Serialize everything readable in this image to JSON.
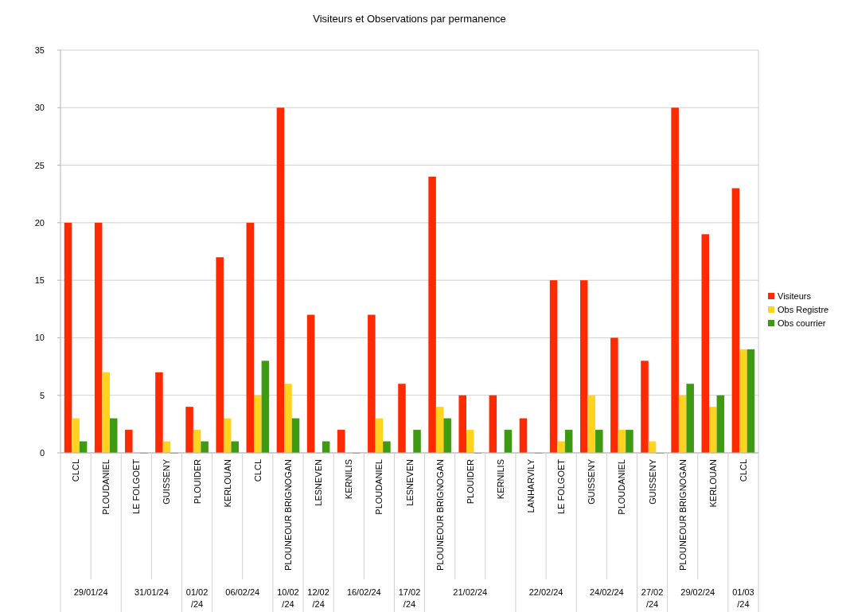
{
  "chart_data": {
    "type": "bar",
    "title": "Visiteurs et Observations par permanence",
    "categories": [
      "CLCL",
      "PLOUDANIEL",
      "LE FOLGOET",
      "GUISSENY",
      "PLOUIDER",
      "KERLOUAN",
      "CLCL",
      "PLOUNEOUR BRIGNOGAN",
      "LESNEVEN",
      "KERNILIS",
      "PLOUDANIEL",
      "LESNEVEN",
      "PLOUNEOUR BRIGNOGAN",
      "PLOUIDER",
      "KERNILIS",
      "LANHARVILY",
      "LE FOLGOET",
      "GUISSENY",
      "PLOUDANIEL",
      "GUISSENY",
      "PLOUNEOUR BRIGNOGAN",
      "KERLOUAN",
      "CLCL"
    ],
    "series": [
      {
        "name": "Visiteurs",
        "color": "#ff2a00",
        "values": [
          20,
          20,
          2,
          7,
          4,
          17,
          20,
          30,
          12,
          2,
          12,
          6,
          24,
          5,
          5,
          3,
          15,
          15,
          10,
          8,
          30,
          19,
          23
        ]
      },
      {
        "name": "Obs Registre",
        "color": "#ffd320",
        "values": [
          3,
          7,
          0,
          1,
          2,
          3,
          5,
          6,
          0,
          0,
          3,
          0,
          4,
          2,
          0,
          0,
          1,
          5,
          2,
          1,
          5,
          4,
          9
        ]
      },
      {
        "name": "Obs courrier",
        "color": "#3d9a13",
        "values": [
          1,
          3,
          0,
          0,
          1,
          1,
          8,
          3,
          1,
          0,
          1,
          2,
          3,
          0,
          2,
          0,
          2,
          2,
          2,
          0,
          6,
          5,
          9
        ]
      }
    ],
    "annotations": [
      "29/01/24",
      "31/01/24",
      "01/02/24",
      "06/02/24",
      "10/02/24",
      "12/02/24",
      "16/02/24",
      "17/02/24",
      "21/02/24",
      "22/02/24",
      "24/02/24",
      "27/02/24",
      "29/02/24",
      "01/03/24"
    ],
    "ylim": [
      0,
      35
    ],
    "yticks": [
      0,
      5,
      10,
      15,
      20,
      25,
      30,
      35
    ],
    "grid": "y",
    "legend": "right"
  }
}
